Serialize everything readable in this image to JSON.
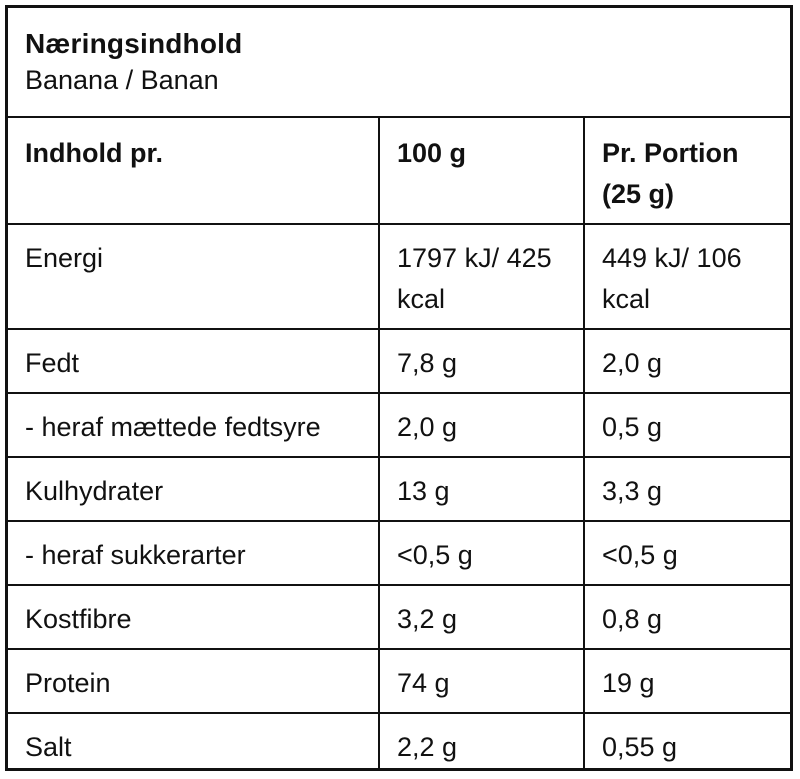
{
  "header": {
    "title": "Næringsindhold",
    "subtitle": "Banana / Banan"
  },
  "table": {
    "headers": [
      "Indhold pr.",
      "100 g",
      "Pr. Portion (25 g)"
    ],
    "rows": [
      {
        "label": "Energi",
        "per_100g": "1797 kJ/ 425 kcal",
        "per_portion": "449 kJ/ 106 kcal"
      },
      {
        "label": "Fedt",
        "per_100g": "7,8 g",
        "per_portion": "2,0 g"
      },
      {
        "label": "- heraf mættede fedtsyre",
        "per_100g": "2,0 g",
        "per_portion": "0,5 g"
      },
      {
        "label": "Kulhydrater",
        "per_100g": "13 g",
        "per_portion": "3,3 g"
      },
      {
        "label": "- heraf sukkerarter",
        "per_100g": "<0,5 g",
        "per_portion": "<0,5 g"
      },
      {
        "label": "Kostfibre",
        "per_100g": "3,2 g",
        "per_portion": "0,8 g"
      },
      {
        "label": "Protein",
        "per_100g": "74 g",
        "per_portion": "19 g"
      },
      {
        "label": "Salt",
        "per_100g": "2,2 g",
        "per_portion": "0,55 g"
      }
    ]
  },
  "colors": {
    "text": "#111111",
    "border": "#111111",
    "background": "#ffffff"
  }
}
